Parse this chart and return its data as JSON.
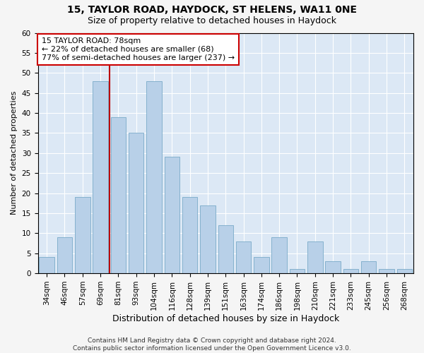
{
  "title1": "15, TAYLOR ROAD, HAYDOCK, ST HELENS, WA11 0NE",
  "title2": "Size of property relative to detached houses in Haydock",
  "xlabel": "Distribution of detached houses by size in Haydock",
  "ylabel": "Number of detached properties",
  "categories": [
    "34sqm",
    "46sqm",
    "57sqm",
    "69sqm",
    "81sqm",
    "93sqm",
    "104sqm",
    "116sqm",
    "128sqm",
    "139sqm",
    "151sqm",
    "163sqm",
    "174sqm",
    "186sqm",
    "198sqm",
    "210sqm",
    "221sqm",
    "233sqm",
    "245sqm",
    "256sqm",
    "268sqm"
  ],
  "values": [
    4,
    9,
    19,
    48,
    39,
    35,
    48,
    29,
    19,
    17,
    12,
    8,
    4,
    9,
    1,
    8,
    3,
    1,
    3,
    1,
    1
  ],
  "bar_color": "#b8d0e8",
  "bar_edge_color": "#7aaac8",
  "vline_x_idx": 3,
  "vline_color": "#bb0000",
  "annotation_text": "15 TAYLOR ROAD: 78sqm\n← 22% of detached houses are smaller (68)\n77% of semi-detached houses are larger (237) →",
  "annotation_box_color": "#ffffff",
  "annotation_box_edge": "#cc0000",
  "ylim": [
    0,
    60
  ],
  "yticks": [
    0,
    5,
    10,
    15,
    20,
    25,
    30,
    35,
    40,
    45,
    50,
    55,
    60
  ],
  "background_color": "#dce8f5",
  "grid_color": "#ffffff",
  "footer1": "Contains HM Land Registry data © Crown copyright and database right 2024.",
  "footer2": "Contains public sector information licensed under the Open Government Licence v3.0.",
  "title1_fontsize": 10,
  "title2_fontsize": 9,
  "ylabel_fontsize": 8,
  "xlabel_fontsize": 9,
  "tick_fontsize": 7.5,
  "annotation_fontsize": 8,
  "footer_fontsize": 6.5
}
